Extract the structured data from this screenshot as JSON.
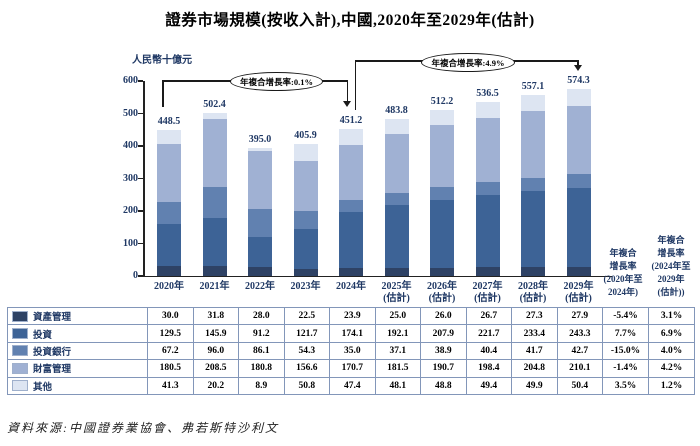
{
  "title": "證券市場規模(按收入計),中國,2020年至2029年(估計)",
  "source_note": "資料來源:中國證券業協會、弗若斯特沙利文",
  "chart": {
    "unit_label": "人民幣十億元",
    "annotations": {
      "cagr_2020_2024": {
        "text": "年複合增長率:0.1%"
      },
      "cagr_2024_2029": {
        "text": "年複合增長率:4.9%"
      }
    }
  },
  "chart_data": {
    "type": "bar",
    "stacked": true,
    "title": "證券市場規模(按收入計),中國,2020年至2029年(估計)",
    "ylabel": "人民幣十億元",
    "ylim": [
      0,
      600
    ],
    "yticks": [
      0,
      100,
      200,
      300,
      400,
      500,
      600
    ],
    "grid": false,
    "categories": [
      "2020年",
      "2021年",
      "2022年",
      "2023年",
      "2024年",
      "2025年",
      "2026年",
      "2027年",
      "2028年",
      "2029年"
    ],
    "estimated_note": "(估計)",
    "estimated_from_index": 5,
    "series": [
      {
        "name": "資產管理",
        "color": "#2e4265",
        "values": [
          30.0,
          31.8,
          28.0,
          22.5,
          23.9,
          25.0,
          26.0,
          26.7,
          27.3,
          27.9
        ],
        "cagr_2020_2024": "-5.4%",
        "cagr_2024_2029": "3.1%"
      },
      {
        "name": "投資",
        "color": "#3d6396",
        "values": [
          129.5,
          145.9,
          91.2,
          121.7,
          174.1,
          192.1,
          207.9,
          221.7,
          233.4,
          243.3
        ],
        "cagr_2020_2024": "7.7%",
        "cagr_2024_2029": "6.9%"
      },
      {
        "name": "投資銀行",
        "color": "#6181b0",
        "values": [
          67.2,
          96.0,
          86.1,
          54.3,
          35.0,
          37.1,
          38.9,
          40.4,
          41.7,
          42.7
        ],
        "cagr_2020_2024": "-15.0%",
        "cagr_2024_2029": "4.0%"
      },
      {
        "name": "財富管理",
        "color": "#a0b1d3",
        "values": [
          180.5,
          208.5,
          180.8,
          156.6,
          170.7,
          181.5,
          190.7,
          198.4,
          204.8,
          210.1
        ],
        "cagr_2020_2024": "-1.4%",
        "cagr_2024_2029": "4.2%"
      },
      {
        "name": "其他",
        "color": "#dde5f2",
        "values": [
          41.3,
          20.2,
          8.9,
          50.8,
          47.4,
          48.1,
          48.8,
          49.4,
          49.9,
          50.4
        ],
        "cagr_2020_2024": "3.5%",
        "cagr_2024_2029": "1.2%"
      }
    ],
    "totals": [
      448.5,
      502.4,
      395.0,
      405.9,
      451.2,
      483.8,
      512.2,
      536.5,
      557.1,
      574.3
    ],
    "annotations": [
      {
        "text": "年複合增長率:0.1%",
        "from": "2020年",
        "to": "2024年"
      },
      {
        "text": "年複合增長率:4.9%",
        "from": "2024年",
        "to": "2029年"
      }
    ],
    "cagr_column_headers": [
      {
        "lines": [
          "年複合",
          "增長率",
          "(2020年至",
          "2024年)"
        ]
      },
      {
        "lines": [
          "年複合",
          "增長率",
          "(2024年至",
          "2029年",
          "(估計))"
        ]
      }
    ],
    "legend_position": "table-left-column"
  }
}
